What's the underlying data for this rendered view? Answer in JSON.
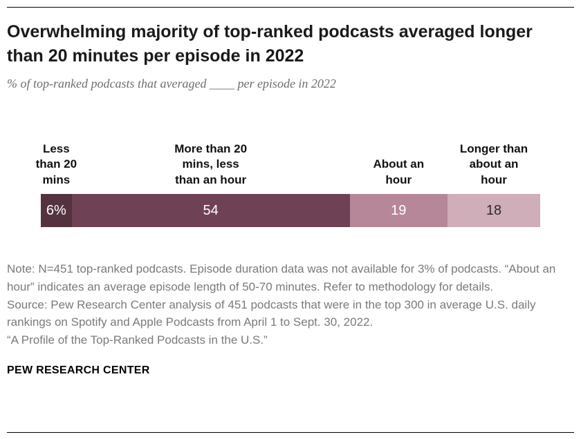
{
  "header": {
    "title": "Overwhelming majority of top-ranked podcasts averaged longer than 20 minutes per episode in 2022",
    "subtitle": "% of top-ranked podcasts that averaged ____ per episode in 2022"
  },
  "chart_data": {
    "type": "bar",
    "orientation": "horizontal",
    "stacked": true,
    "title": "Overwhelming majority of top-ranked podcasts averaged longer than 20 minutes per episode in 2022",
    "categories": [
      "Less than 20 mins",
      "More than 20 mins, less than an hour",
      "About an hour",
      "Longer than about an hour"
    ],
    "category_lines": [
      [
        "Less",
        "than 20",
        "mins"
      ],
      [
        "More than 20",
        "mins, less",
        "than an hour"
      ],
      [
        "About an",
        "hour"
      ],
      [
        "Longer than",
        "about an",
        "hour"
      ]
    ],
    "values": [
      6,
      54,
      19,
      18
    ],
    "value_labels": [
      "6%",
      "54",
      "19",
      "18"
    ],
    "colors": [
      "#55323f",
      "#6f4154",
      "#b68798",
      "#cfadb9"
    ],
    "value_label_colors": [
      "#ffffff",
      "#ffffff",
      "#ffffff",
      "#2b2b2b"
    ]
  },
  "footer": {
    "note": "Note: N=451 top-ranked podcasts. Episode duration data was not available for 3% of podcasts. “About an hour” indicates an average episode length of 50-70 minutes. Refer to methodology for details.",
    "source": "Source: Pew Research Center analysis of 451 podcasts that were in the top 300 in average U.S. daily rankings on Spotify and Apple Podcasts from April 1 to Sept. 30, 2022.",
    "report": "“A Profile of the Top-Ranked Podcasts in the U.S.”",
    "brand": "PEW RESEARCH CENTER"
  }
}
